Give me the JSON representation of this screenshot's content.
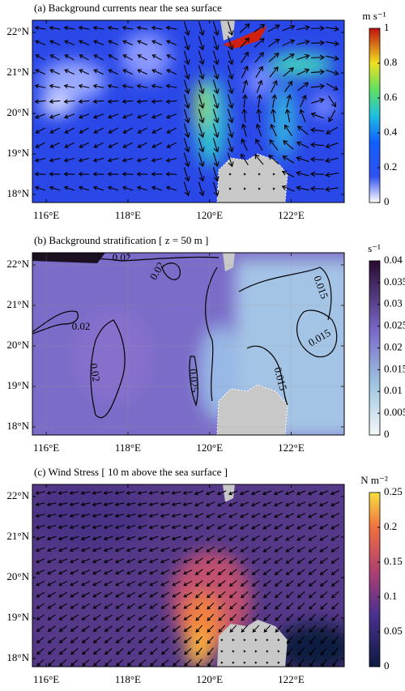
{
  "map": {
    "lonlim": [
      115.66,
      123.3
    ],
    "latlim": [
      17.8,
      22.3
    ],
    "lonticks": [
      {
        "value": 116,
        "label": "116°E"
      },
      {
        "value": 118,
        "label": "118°E"
      },
      {
        "value": 120,
        "label": "120°E"
      },
      {
        "value": 122,
        "label": "122°E"
      }
    ],
    "latticks": [
      {
        "value": 18,
        "label": "18°N"
      },
      {
        "value": 19,
        "label": "19°N"
      },
      {
        "value": 20,
        "label": "20°N"
      },
      {
        "value": 21,
        "label": "21°N"
      },
      {
        "value": 22,
        "label": "22°N"
      }
    ]
  },
  "panels": [
    {
      "title": "(a) Background currents near the sea surface",
      "colorbar": {
        "unit": "m s⁻¹",
        "lim": [
          0,
          1
        ],
        "ticks": [
          0,
          0.2,
          0.4,
          0.6,
          0.8,
          1
        ]
      }
    },
    {
      "title": "(b) Background stratification [ z = 50 m ]",
      "colorbar": {
        "unit": "s⁻¹",
        "lim": [
          0,
          0.04
        ],
        "ticks": [
          0,
          0.005,
          0.01,
          0.015,
          0.02,
          0.025,
          0.03,
          0.035,
          0.04
        ]
      },
      "contour_labels": [
        "0.02",
        "0.02",
        "0.02",
        "0.02",
        "0.025",
        "0.015",
        "0.015",
        "0.015"
      ]
    },
    {
      "title": "(c) Wind Stress [ 10 m above the sea surface ]",
      "colorbar": {
        "unit": "N m⁻²",
        "lim": [
          0,
          0.25
        ],
        "ticks": [
          0,
          0.05,
          0.1,
          0.15,
          0.2,
          0.25
        ]
      }
    }
  ]
}
